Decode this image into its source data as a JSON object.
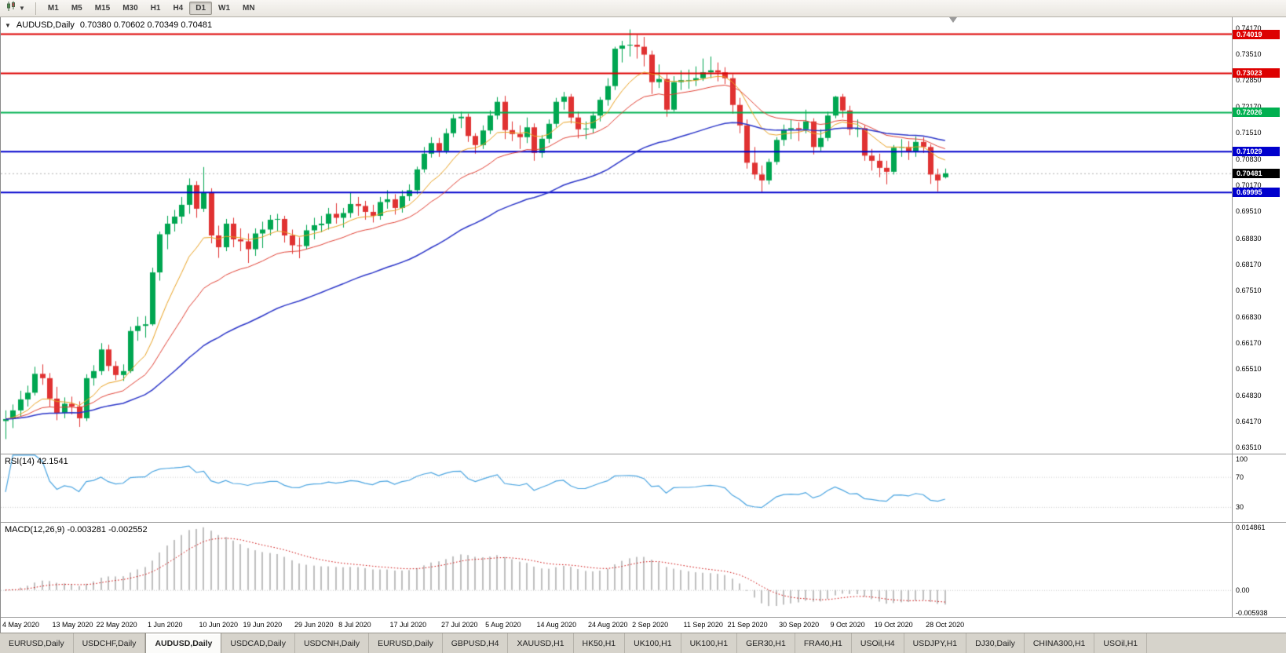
{
  "toolbar": {
    "timeframes": [
      "M1",
      "M5",
      "M15",
      "M30",
      "H1",
      "H4",
      "D1",
      "W1",
      "MN"
    ],
    "active_timeframe": "D1"
  },
  "main_chart": {
    "title": "AUDUSD,Daily",
    "ohlc": "0.70380 0.70602 0.70349 0.70481"
  },
  "panels": {
    "rsi_label": "RSI(14) 42.1541",
    "macd_label": "MACD(12,26,9) -0.003281 -0.002552"
  },
  "tabs": {
    "active_index": 2,
    "items": [
      "EURUSD,Daily",
      "USDCHF,Daily",
      "AUDUSD,Daily",
      "USDCAD,Daily",
      "USDCNH,Daily",
      "EURUSD,Daily",
      "GBPUSD,H4",
      "XAUUSD,H1",
      "HK50,H1",
      "UK100,H1",
      "UK100,H1",
      "GER30,H1",
      "FRA40,H1",
      "USOil,H4",
      "USDJPY,H1",
      "DJ30,Daily",
      "CHINA300,H1",
      "USOil,H1"
    ]
  },
  "chart_data": {
    "type": "candlestick",
    "symbol": "AUDUSD",
    "timeframe": "Daily",
    "current_ohlc": {
      "open": 0.7038,
      "high": 0.70602,
      "low": 0.70349,
      "close": 0.70481
    },
    "ylim": [
      0.6335,
      0.7445
    ],
    "y_axis_labels": [
      "0.74170",
      "0.73510",
      "0.72850",
      "0.72170",
      "0.71510",
      "0.70830",
      "0.70170",
      "0.69510",
      "0.68830",
      "0.68170",
      "0.67510",
      "0.66830",
      "0.66170",
      "0.65510",
      "0.64830",
      "0.64170",
      "0.63510"
    ],
    "x_labels": [
      [
        "4 May 2020",
        0
      ],
      [
        "13 May 2020",
        7
      ],
      [
        "22 May 2020",
        13
      ],
      [
        "1 Jun 2020",
        20
      ],
      [
        "10 Jun 2020",
        27
      ],
      [
        "19 Jun 2020",
        33
      ],
      [
        "29 Jun 2020",
        40
      ],
      [
        "8 Jul 2020",
        46
      ],
      [
        "17 Jul 2020",
        53
      ],
      [
        "27 Jul 2020",
        60
      ],
      [
        "5 Aug 2020",
        66
      ],
      [
        "14 Aug 2020",
        73
      ],
      [
        "24 Aug 2020",
        80
      ],
      [
        "2 Sep 2020",
        86
      ],
      [
        "11 Sep 2020",
        93
      ],
      [
        "21 Sep 2020",
        99
      ],
      [
        "30 Sep 2020",
        106
      ],
      [
        "9 Oct 2020",
        113
      ],
      [
        "19 Oct 2020",
        119
      ],
      [
        "28 Oct 2020",
        126
      ]
    ],
    "hlines": [
      {
        "price": 0.74019,
        "label": "0.74019",
        "color": "#dd0000"
      },
      {
        "price": 0.73023,
        "label": "0.73023",
        "color": "#dd0000"
      },
      {
        "price": 0.72026,
        "label": "0.72026",
        "color": "#00b050"
      },
      {
        "price": 0.71029,
        "label": "0.71029",
        "color": "#0000cd"
      },
      {
        "price": 0.69995,
        "label": "0.69995",
        "color": "#0000cd"
      }
    ],
    "current_price": {
      "price": 0.70481,
      "label": "0.70481",
      "color": "#000000"
    },
    "moving_averages": [
      {
        "period": 10,
        "type": "ema",
        "color": "#e8a020",
        "width": 1
      },
      {
        "period": 21,
        "type": "ema",
        "color": "#e04034",
        "width": 1
      },
      {
        "period": 50,
        "type": "ema",
        "color": "#2b35c8",
        "width": 1.5
      }
    ],
    "colors": {
      "bull": "#00a651",
      "bear": "#e03232",
      "rsi": "#4aa4e0",
      "macd_hist": "#bfbfbf",
      "macd_signal": "#cc0000",
      "grid": "#c8c8c8"
    },
    "rsi_panel": {
      "period": 14,
      "value": 42.1541,
      "range": [
        10,
        100
      ],
      "levels": [
        70,
        30
      ],
      "axis_labels": [
        "100",
        "70",
        "30"
      ],
      "axis_values": [
        100,
        70,
        30
      ]
    },
    "macd_panel": {
      "fast": 12,
      "slow": 26,
      "signal": 9,
      "values": [
        -0.003281,
        -0.002552
      ],
      "range": [
        -0.005938,
        0.014861
      ],
      "axis_labels": [
        "0.014861",
        "0.00",
        "-0.005938"
      ],
      "axis_values": [
        0.014861,
        0,
        -0.005938
      ]
    },
    "candles": [
      [
        0.6418,
        0.6445,
        0.6372,
        0.6423
      ],
      [
        0.6423,
        0.646,
        0.64,
        0.6445
      ],
      [
        0.6445,
        0.6495,
        0.643,
        0.6473
      ],
      [
        0.6473,
        0.6508,
        0.6455,
        0.649
      ],
      [
        0.649,
        0.6556,
        0.6483,
        0.6538
      ],
      [
        0.6538,
        0.6562,
        0.651,
        0.6527
      ],
      [
        0.6527,
        0.654,
        0.6455,
        0.6475
      ],
      [
        0.6475,
        0.6505,
        0.642,
        0.6438
      ],
      [
        0.6438,
        0.6478,
        0.6425,
        0.6462
      ],
      [
        0.6462,
        0.648,
        0.6435,
        0.6455
      ],
      [
        0.6455,
        0.6468,
        0.6403,
        0.6425
      ],
      [
        0.6425,
        0.6537,
        0.6418,
        0.6527
      ],
      [
        0.6527,
        0.656,
        0.6508,
        0.6545
      ],
      [
        0.6545,
        0.6616,
        0.6535,
        0.66
      ],
      [
        0.66,
        0.6612,
        0.6545,
        0.6558
      ],
      [
        0.6558,
        0.657,
        0.6522,
        0.6535
      ],
      [
        0.6535,
        0.6562,
        0.652,
        0.6545
      ],
      [
        0.6545,
        0.6658,
        0.654,
        0.6647
      ],
      [
        0.6647,
        0.6683,
        0.6622,
        0.666
      ],
      [
        0.666,
        0.6685,
        0.663,
        0.6664
      ],
      [
        0.6664,
        0.6808,
        0.666,
        0.6796
      ],
      [
        0.6796,
        0.69,
        0.6775,
        0.6893
      ],
      [
        0.6893,
        0.694,
        0.6855,
        0.692
      ],
      [
        0.692,
        0.6955,
        0.69,
        0.6938
      ],
      [
        0.6938,
        0.6988,
        0.692,
        0.6968
      ],
      [
        0.6968,
        0.7035,
        0.6945,
        0.7018
      ],
      [
        0.7018,
        0.7028,
        0.6935,
        0.6958
      ],
      [
        0.6958,
        0.7064,
        0.695,
        0.7
      ],
      [
        0.7,
        0.701,
        0.687,
        0.689
      ],
      [
        0.689,
        0.6915,
        0.6833,
        0.686
      ],
      [
        0.686,
        0.6932,
        0.685,
        0.692
      ],
      [
        0.692,
        0.6935,
        0.686,
        0.688
      ],
      [
        0.688,
        0.6908,
        0.685,
        0.6875
      ],
      [
        0.6875,
        0.6895,
        0.682,
        0.6855
      ],
      [
        0.6855,
        0.6908,
        0.6838,
        0.6895
      ],
      [
        0.6895,
        0.6925,
        0.6858,
        0.6905
      ],
      [
        0.6905,
        0.6942,
        0.689,
        0.693
      ],
      [
        0.693,
        0.6945,
        0.69,
        0.6932
      ],
      [
        0.6932,
        0.694,
        0.6872,
        0.689
      ],
      [
        0.689,
        0.6905,
        0.6843,
        0.6865
      ],
      [
        0.6865,
        0.6885,
        0.6832,
        0.6863
      ],
      [
        0.6863,
        0.6917,
        0.6855,
        0.6903
      ],
      [
        0.6903,
        0.6935,
        0.688,
        0.6916
      ],
      [
        0.6916,
        0.694,
        0.6898,
        0.692
      ],
      [
        0.692,
        0.696,
        0.6905,
        0.6945
      ],
      [
        0.6945,
        0.6972,
        0.692,
        0.6935
      ],
      [
        0.6935,
        0.696,
        0.691,
        0.6947
      ],
      [
        0.6947,
        0.7,
        0.6935,
        0.697
      ],
      [
        0.697,
        0.6988,
        0.694,
        0.6965
      ],
      [
        0.6965,
        0.6978,
        0.693,
        0.695
      ],
      [
        0.695,
        0.6968,
        0.6923,
        0.694
      ],
      [
        0.694,
        0.6988,
        0.693,
        0.6975
      ],
      [
        0.6975,
        0.7005,
        0.6958,
        0.6982
      ],
      [
        0.6982,
        0.6995,
        0.6943,
        0.696
      ],
      [
        0.696,
        0.7005,
        0.6948,
        0.699
      ],
      [
        0.699,
        0.702,
        0.6978,
        0.7005
      ],
      [
        0.7005,
        0.7065,
        0.6995,
        0.7058
      ],
      [
        0.7058,
        0.7115,
        0.705,
        0.7098
      ],
      [
        0.7098,
        0.714,
        0.7088,
        0.7125
      ],
      [
        0.7125,
        0.7138,
        0.709,
        0.7105
      ],
      [
        0.7105,
        0.7162,
        0.7098,
        0.715
      ],
      [
        0.715,
        0.7198,
        0.714,
        0.7188
      ],
      [
        0.7188,
        0.7205,
        0.7163,
        0.7192
      ],
      [
        0.7192,
        0.72,
        0.7128,
        0.7143
      ],
      [
        0.7143,
        0.715,
        0.7098,
        0.712
      ],
      [
        0.712,
        0.717,
        0.711,
        0.7157
      ],
      [
        0.7157,
        0.7208,
        0.7148,
        0.7195
      ],
      [
        0.7195,
        0.7242,
        0.7185,
        0.723
      ],
      [
        0.723,
        0.7245,
        0.7135,
        0.7158
      ],
      [
        0.7158,
        0.718,
        0.713,
        0.7148
      ],
      [
        0.7148,
        0.717,
        0.711,
        0.714
      ],
      [
        0.714,
        0.719,
        0.7125,
        0.7165
      ],
      [
        0.7165,
        0.7175,
        0.708,
        0.71
      ],
      [
        0.71,
        0.7145,
        0.7088,
        0.7136
      ],
      [
        0.7136,
        0.7185,
        0.7125,
        0.7174
      ],
      [
        0.7174,
        0.724,
        0.7165,
        0.723
      ],
      [
        0.723,
        0.7255,
        0.721,
        0.7243
      ],
      [
        0.7243,
        0.725,
        0.7175,
        0.719
      ],
      [
        0.719,
        0.7205,
        0.7137,
        0.716
      ],
      [
        0.716,
        0.718,
        0.7135,
        0.7162
      ],
      [
        0.7162,
        0.7205,
        0.715,
        0.7195
      ],
      [
        0.7195,
        0.7242,
        0.718,
        0.7235
      ],
      [
        0.7235,
        0.729,
        0.722,
        0.727
      ],
      [
        0.727,
        0.737,
        0.726,
        0.7365
      ],
      [
        0.7365,
        0.7385,
        0.733,
        0.7373
      ],
      [
        0.7373,
        0.7414,
        0.7345,
        0.7375
      ],
      [
        0.7375,
        0.74,
        0.734,
        0.737
      ],
      [
        0.737,
        0.7395,
        0.732,
        0.735
      ],
      [
        0.735,
        0.736,
        0.725,
        0.728
      ],
      [
        0.728,
        0.7325,
        0.7265,
        0.7288
      ],
      [
        0.7288,
        0.73,
        0.7192,
        0.721
      ],
      [
        0.721,
        0.7295,
        0.7205,
        0.728
      ],
      [
        0.728,
        0.731,
        0.726,
        0.7285
      ],
      [
        0.7285,
        0.7312,
        0.7263,
        0.7285
      ],
      [
        0.7285,
        0.732,
        0.727,
        0.729
      ],
      [
        0.729,
        0.734,
        0.7283,
        0.7305
      ],
      [
        0.7305,
        0.7345,
        0.729,
        0.731
      ],
      [
        0.731,
        0.733,
        0.7282,
        0.7305
      ],
      [
        0.7305,
        0.7318,
        0.7275,
        0.729
      ],
      [
        0.729,
        0.73,
        0.72,
        0.7222
      ],
      [
        0.7222,
        0.724,
        0.715,
        0.717
      ],
      [
        0.717,
        0.7185,
        0.706,
        0.7075
      ],
      [
        0.7075,
        0.7115,
        0.7033,
        0.7045
      ],
      [
        0.7045,
        0.7068,
        0.7,
        0.703
      ],
      [
        0.703,
        0.7085,
        0.702,
        0.7077
      ],
      [
        0.7077,
        0.714,
        0.707,
        0.7133
      ],
      [
        0.7133,
        0.7172,
        0.7118,
        0.716
      ],
      [
        0.716,
        0.7185,
        0.7135,
        0.7163
      ],
      [
        0.7163,
        0.7178,
        0.713,
        0.716
      ],
      [
        0.716,
        0.721,
        0.715,
        0.718
      ],
      [
        0.718,
        0.7188,
        0.7096,
        0.7115
      ],
      [
        0.7115,
        0.716,
        0.7105,
        0.7138
      ],
      [
        0.7138,
        0.7205,
        0.713,
        0.7195
      ],
      [
        0.7195,
        0.7245,
        0.7188,
        0.7243
      ],
      [
        0.7243,
        0.725,
        0.719,
        0.7208
      ],
      [
        0.7208,
        0.722,
        0.7145,
        0.716
      ],
      [
        0.716,
        0.7185,
        0.714,
        0.7163
      ],
      [
        0.7163,
        0.717,
        0.708,
        0.7093
      ],
      [
        0.7093,
        0.711,
        0.7055,
        0.708
      ],
      [
        0.708,
        0.7098,
        0.7038,
        0.7062
      ],
      [
        0.7062,
        0.708,
        0.702,
        0.7052
      ],
      [
        0.7052,
        0.712,
        0.7045,
        0.7113
      ],
      [
        0.7113,
        0.7135,
        0.709,
        0.7115
      ],
      [
        0.7115,
        0.713,
        0.7082,
        0.7103
      ],
      [
        0.7103,
        0.7142,
        0.709,
        0.7128
      ],
      [
        0.7128,
        0.714,
        0.71,
        0.7115
      ],
      [
        0.7115,
        0.7122,
        0.7021,
        0.7045
      ],
      [
        0.7045,
        0.706,
        0.7002,
        0.703
      ],
      [
        0.7038,
        0.70602,
        0.70349,
        0.70481
      ]
    ]
  }
}
